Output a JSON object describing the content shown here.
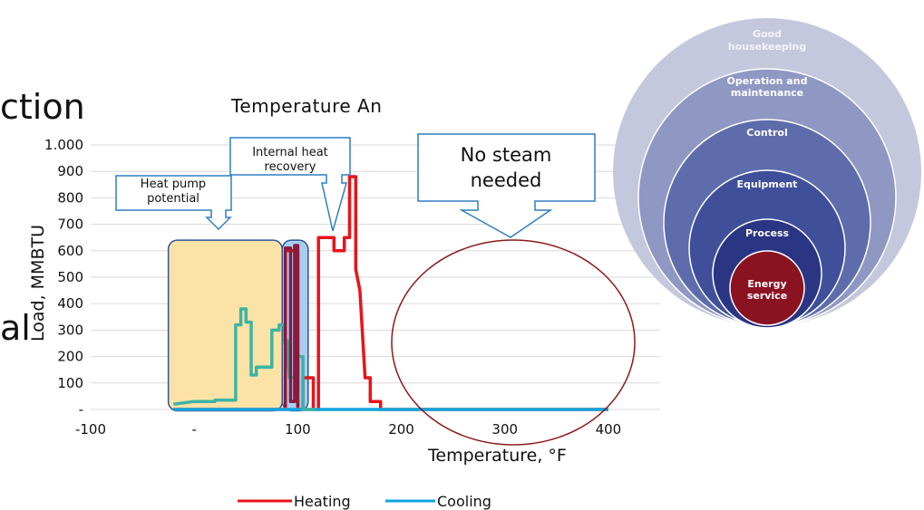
{
  "slide_fragments": {
    "top": "ction",
    "mid": "al"
  },
  "chart_data": {
    "type": "line",
    "title": "Temperature An",
    "xlabel": "Temperature, °F",
    "ylabel": "Load, MMBTU",
    "xlim": [
      -100,
      450
    ],
    "ylim": [
      0,
      1000
    ],
    "x_ticks": [
      -100,
      0,
      100,
      200,
      300,
      400
    ],
    "x_tick_labels": [
      "-100",
      "-",
      "100",
      "200",
      "300",
      "400"
    ],
    "y_ticks": [
      0,
      100,
      200,
      300,
      400,
      500,
      600,
      700,
      800,
      900,
      1000
    ],
    "y_tick_labels": [
      "-",
      "100",
      "200",
      "300",
      "400",
      "500",
      "600",
      "700",
      "800",
      "900",
      "1.000"
    ],
    "grid": true,
    "legend_position": "bottom",
    "series": [
      {
        "name": "Heating",
        "color": "#e8141b",
        "points": [
          [
            -20,
            0
          ],
          [
            88,
            0
          ],
          [
            88,
            600
          ],
          [
            100,
            600
          ],
          [
            100,
            0
          ],
          [
            105,
            0
          ],
          [
            105,
            120
          ],
          [
            115,
            120
          ],
          [
            115,
            0
          ],
          [
            120,
            0
          ],
          [
            120,
            650
          ],
          [
            135,
            650
          ],
          [
            135,
            600
          ],
          [
            145,
            600
          ],
          [
            145,
            650
          ],
          [
            150,
            650
          ],
          [
            150,
            880
          ],
          [
            156,
            880
          ],
          [
            156,
            530
          ],
          [
            160,
            450
          ],
          [
            165,
            120
          ],
          [
            170,
            120
          ],
          [
            170,
            30
          ],
          [
            180,
            30
          ],
          [
            180,
            0
          ],
          [
            400,
            0
          ]
        ]
      },
      {
        "name": "Cooling",
        "color": "#0ea5e0",
        "points": [
          [
            -20,
            0
          ],
          [
            400,
            0
          ]
        ]
      },
      {
        "name": "",
        "color": "#3cb4a4",
        "points": [
          [
            -20,
            20
          ],
          [
            0,
            30
          ],
          [
            20,
            30
          ],
          [
            20,
            35
          ],
          [
            40,
            35
          ],
          [
            40,
            320
          ],
          [
            45,
            320
          ],
          [
            45,
            380
          ],
          [
            50,
            380
          ],
          [
            50,
            330
          ],
          [
            55,
            330
          ],
          [
            55,
            130
          ],
          [
            60,
            130
          ],
          [
            60,
            160
          ],
          [
            75,
            160
          ],
          [
            75,
            300
          ],
          [
            82,
            300
          ],
          [
            82,
            320
          ],
          [
            87,
            320
          ],
          [
            87,
            250
          ],
          [
            90,
            260
          ],
          [
            92,
            120
          ],
          [
            97,
            120
          ],
          [
            97,
            80
          ],
          [
            100,
            80
          ],
          [
            100,
            200
          ],
          [
            105,
            200
          ],
          [
            105,
            0
          ],
          [
            118,
            0
          ]
        ]
      },
      {
        "name": "",
        "color": "#8b1a3c",
        "points": [
          [
            88,
            10
          ],
          [
            88,
            610
          ],
          [
            93,
            610
          ],
          [
            93,
            30
          ],
          [
            97,
            30
          ],
          [
            97,
            620
          ],
          [
            100,
            620
          ],
          [
            100,
            10
          ]
        ]
      }
    ],
    "regions": [
      {
        "name": "heat-pump-region",
        "x": [
          -25,
          85
        ],
        "fill": "#fbe3a8",
        "stroke": "#2f5597"
      },
      {
        "name": "internal-recovery-region",
        "x": [
          85,
          110
        ],
        "fill": "#a9cdef",
        "stroke": "#2f5597"
      }
    ],
    "callouts": {
      "heat_pump_1": "Heat pump",
      "heat_pump_2": "potential",
      "internal_1": "Internal heat",
      "internal_2": "recovery",
      "no_steam_1": "No steam",
      "no_steam_2": "needed"
    },
    "legend": [
      "Heating",
      "Cooling"
    ]
  },
  "onion_diagram": {
    "colors": [
      "#c4c8dc",
      "#8f97c3",
      "#5e6cab",
      "#3f4f99",
      "#2a3584",
      "#8b1221"
    ],
    "rings": [
      [
        "Good",
        "housekeeping"
      ],
      [
        "Operation and",
        "maintenance"
      ],
      [
        "Control"
      ],
      [
        "Equipment"
      ],
      [
        "Process"
      ],
      [
        "Energy",
        "service"
      ]
    ]
  }
}
